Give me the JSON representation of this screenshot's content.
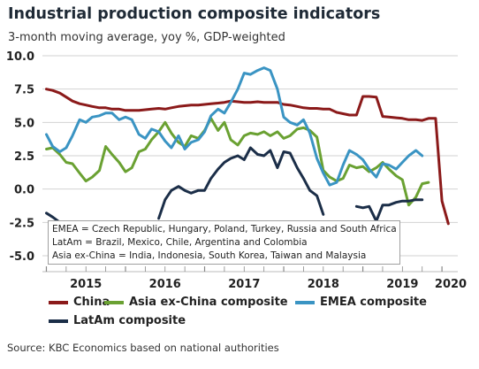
{
  "title": "Industrial production composite indicators",
  "subtitle": "3-month moving average, yoy %, GDP-weighted",
  "source": "Source: KBC Economics based on national authorities",
  "notes": [
    "EMEA = Czech Republic, Hungary, Poland, Turkey, Russia and South Africa",
    "LatAm = Brazil, Mexico, Chile, Argentina and Colombia",
    "Asia ex-China = India, Indonesia, South Korea, Taiwan and Malaysia"
  ],
  "colors": {
    "china": "#8b1a1a",
    "asia": "#6aa132",
    "emea": "#3a94c3",
    "latam": "#1b2e48"
  },
  "chart_data": {
    "type": "line",
    "title": "Industrial production composite indicators",
    "subtitle": "3-month moving average, yoy %, GDP-weighted",
    "xlabel": "",
    "ylabel": "",
    "xlim": [
      2014.95,
      2020.2
    ],
    "ylim": [
      -5.0,
      10.0
    ],
    "yticks": [
      "10.0",
      "7.5",
      "5.0",
      "2.5",
      "0.0",
      "-2.5",
      "-5.0"
    ],
    "xticks": [
      "2015",
      "2016",
      "2017",
      "2018",
      "2019",
      "2020"
    ],
    "grid": true,
    "legend_position": "bottom",
    "series": [
      {
        "name": "China",
        "color": "#8b1a1a",
        "x": [
          2015.0,
          2015.08,
          2015.17,
          2015.25,
          2015.33,
          2015.42,
          2015.5,
          2015.58,
          2015.67,
          2015.75,
          2015.83,
          2015.92,
          2016.0,
          2016.08,
          2016.17,
          2016.25,
          2016.33,
          2016.42,
          2016.5,
          2016.58,
          2016.67,
          2016.75,
          2016.83,
          2016.92,
          2017.0,
          2017.08,
          2017.17,
          2017.25,
          2017.33,
          2017.42,
          2017.5,
          2017.58,
          2017.67,
          2017.75,
          2017.83,
          2017.92,
          2018.0,
          2018.08,
          2018.17,
          2018.25,
          2018.33,
          2018.42,
          2018.5,
          2018.58,
          2018.67,
          2018.75,
          2018.83,
          2018.92,
          2019.0,
          2019.08,
          2019.17,
          2019.25,
          2019.33,
          2019.42,
          2019.5,
          2019.58,
          2019.67,
          2019.75,
          2019.83,
          2019.92,
          2020.0,
          2020.08
        ],
        "values": [
          7.5,
          7.4,
          7.2,
          6.9,
          6.6,
          6.4,
          6.3,
          6.2,
          6.1,
          6.1,
          6.0,
          6.0,
          5.9,
          5.9,
          5.9,
          5.95,
          6.0,
          6.05,
          6.0,
          6.1,
          6.2,
          6.25,
          6.3,
          6.3,
          6.35,
          6.4,
          6.45,
          6.5,
          6.6,
          6.55,
          6.5,
          6.5,
          6.55,
          6.5,
          6.5,
          6.5,
          6.35,
          6.3,
          6.2,
          6.1,
          6.05,
          6.05,
          6.0,
          6.0,
          5.75,
          5.65,
          5.55,
          5.55,
          6.95,
          6.95,
          6.9,
          5.45,
          5.4,
          5.35,
          5.3,
          5.2,
          5.2,
          5.15,
          5.3,
          5.3,
          -0.9,
          -2.6
        ]
      },
      {
        "name": "Asia ex-China composite",
        "color": "#6aa132",
        "x": [
          2015.0,
          2015.08,
          2015.17,
          2015.25,
          2015.33,
          2015.42,
          2015.5,
          2015.58,
          2015.67,
          2015.75,
          2015.83,
          2015.92,
          2016.0,
          2016.08,
          2016.17,
          2016.25,
          2016.33,
          2016.42,
          2016.5,
          2016.58,
          2016.67,
          2016.75,
          2016.83,
          2016.92,
          2017.0,
          2017.08,
          2017.17,
          2017.25,
          2017.33,
          2017.42,
          2017.5,
          2017.58,
          2017.67,
          2017.75,
          2017.83,
          2017.92,
          2018.0,
          2018.08,
          2018.17,
          2018.25,
          2018.33,
          2018.42,
          2018.5,
          2018.58,
          2018.67,
          2018.75,
          2018.83,
          2018.92,
          2019.0,
          2019.08,
          2019.17,
          2019.25,
          2019.33,
          2019.42,
          2019.5,
          2019.58,
          2019.67,
          2019.75,
          2019.83
        ],
        "values": [
          3.0,
          3.1,
          2.6,
          2.0,
          1.9,
          1.2,
          0.6,
          0.9,
          1.4,
          3.2,
          2.6,
          2.0,
          1.3,
          1.6,
          2.8,
          3.0,
          3.7,
          4.3,
          5.0,
          4.2,
          3.5,
          3.2,
          4.0,
          3.8,
          4.4,
          5.3,
          4.4,
          5.0,
          3.7,
          3.3,
          4.0,
          4.2,
          4.1,
          4.3,
          4.0,
          4.3,
          3.8,
          4.0,
          4.5,
          4.6,
          4.4,
          3.9,
          1.4,
          0.9,
          0.6,
          0.8,
          1.8,
          1.6,
          1.7,
          1.3,
          1.6,
          2.0,
          1.5,
          1.0,
          0.7,
          -1.2,
          -0.6,
          0.4,
          0.5
        ]
      },
      {
        "name": "EMEA composite",
        "color": "#3a94c3",
        "x": [
          2015.0,
          2015.08,
          2015.17,
          2015.25,
          2015.33,
          2015.42,
          2015.5,
          2015.58,
          2015.67,
          2015.75,
          2015.83,
          2015.92,
          2016.0,
          2016.08,
          2016.17,
          2016.25,
          2016.33,
          2016.42,
          2016.5,
          2016.58,
          2016.67,
          2016.75,
          2016.83,
          2016.92,
          2017.0,
          2017.08,
          2017.17,
          2017.25,
          2017.33,
          2017.42,
          2017.5,
          2017.58,
          2017.67,
          2017.75,
          2017.83,
          2017.92,
          2018.0,
          2018.08,
          2018.17,
          2018.25,
          2018.33,
          2018.42,
          2018.5,
          2018.58,
          2018.67,
          2018.75,
          2018.83,
          2018.92,
          2019.0,
          2019.08,
          2019.17,
          2019.25,
          2019.33,
          2019.42,
          2019.5,
          2019.58,
          2019.67,
          2019.75
        ],
        "values": [
          4.1,
          3.2,
          2.8,
          3.1,
          4.0,
          5.2,
          5.0,
          5.4,
          5.5,
          5.7,
          5.7,
          5.2,
          5.4,
          5.2,
          4.1,
          3.8,
          4.5,
          4.3,
          3.6,
          3.1,
          4.0,
          3.0,
          3.5,
          3.7,
          4.3,
          5.5,
          6.0,
          5.7,
          6.5,
          7.5,
          8.7,
          8.6,
          8.9,
          9.1,
          8.9,
          7.5,
          5.4,
          5.0,
          4.8,
          5.2,
          4.2,
          2.3,
          1.2,
          0.3,
          0.5,
          1.8,
          2.9,
          2.6,
          2.2,
          1.5,
          0.9,
          1.9,
          1.8,
          1.5,
          2.0,
          2.5,
          2.9,
          2.5
        ]
      },
      {
        "name": "LatAm composite",
        "color": "#1b2e48",
        "x": [
          2015.0,
          2015.08,
          2015.17,
          2015.25,
          2015.33,
          2015.42,
          2015.5,
          2016.42,
          2016.5,
          2016.58,
          2016.67,
          2016.75,
          2016.83,
          2016.92,
          2017.0,
          2017.08,
          2017.17,
          2017.25,
          2017.33,
          2017.42,
          2017.5,
          2017.58,
          2017.67,
          2017.75,
          2017.83,
          2017.92,
          2018.0,
          2018.08,
          2018.17,
          2018.25,
          2018.33,
          2018.42,
          2018.5,
          2018.92,
          2019.0,
          2019.08,
          2019.17,
          2019.25,
          2019.33,
          2019.42,
          2019.5,
          2019.58,
          2019.67,
          2019.75
        ],
        "values": [
          -1.8,
          -2.1,
          -2.5,
          -2.6,
          -2.8,
          -2.6,
          -2.9,
          -2.2,
          -0.8,
          -0.1,
          0.2,
          -0.1,
          -0.3,
          -0.1,
          -0.1,
          0.8,
          1.5,
          2.0,
          2.3,
          2.5,
          2.2,
          3.1,
          2.6,
          2.5,
          2.9,
          1.6,
          2.8,
          2.7,
          1.6,
          0.8,
          -0.1,
          -0.5,
          -1.9,
          -1.3,
          -1.4,
          -1.3,
          -2.4,
          -1.2,
          -1.2,
          -1.0,
          -0.9,
          -0.9,
          -0.8,
          -0.8
        ]
      }
    ]
  }
}
